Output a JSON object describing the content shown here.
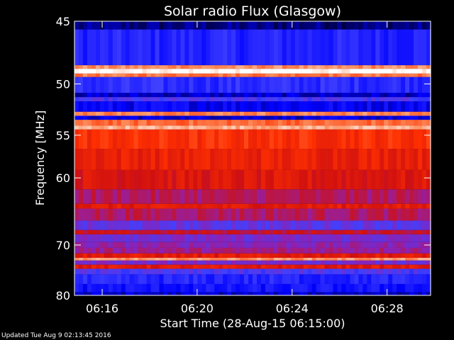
{
  "chart_data": {
    "type": "heatmap",
    "title": "Solar radio Flux (Glasgow)",
    "xlabel": "Start Time (28-Aug-15 06:15:00)",
    "ylabel": "Frequency [MHz]",
    "x_unit": "time (hh:mm)",
    "xlim": [
      "06:14:50",
      "06:29:50"
    ],
    "ylim": [
      45,
      80
    ],
    "x_ticks": [
      "06:16",
      "06:20",
      "06:24",
      "06:28"
    ],
    "y_ticks": [
      45,
      50,
      55,
      60,
      70,
      80
    ],
    "y_scale": "reciprocal",
    "colormap": [
      "#000040",
      "#0000ff",
      "#4040ff",
      "#9020b0",
      "#d01010",
      "#ff3000",
      "#ff9060",
      "#ffffff"
    ],
    "frequency_bands": [
      {
        "from": 45.0,
        "to": 45.6,
        "intensity": 0.05
      },
      {
        "from": 45.6,
        "to": 48.4,
        "intensity": 0.22
      },
      {
        "from": 48.4,
        "to": 48.7,
        "intensity": 0.85
      },
      {
        "from": 48.7,
        "to": 49.1,
        "intensity": 1.0
      },
      {
        "from": 49.1,
        "to": 49.4,
        "intensity": 0.82
      },
      {
        "from": 49.4,
        "to": 50.8,
        "intensity": 0.24
      },
      {
        "from": 50.8,
        "to": 51.2,
        "intensity": 0.1
      },
      {
        "from": 51.2,
        "to": 51.6,
        "intensity": 0.3
      },
      {
        "from": 51.6,
        "to": 52.6,
        "intensity": 0.15
      },
      {
        "from": 52.6,
        "to": 53.0,
        "intensity": 0.84
      },
      {
        "from": 53.0,
        "to": 53.4,
        "intensity": 0.12
      },
      {
        "from": 53.4,
        "to": 54.0,
        "intensity": 0.8
      },
      {
        "from": 54.0,
        "to": 54.4,
        "intensity": 0.9
      },
      {
        "from": 54.4,
        "to": 56.5,
        "intensity": 0.7
      },
      {
        "from": 56.5,
        "to": 59.0,
        "intensity": 0.65
      },
      {
        "from": 59.0,
        "to": 61.5,
        "intensity": 0.6
      },
      {
        "from": 61.5,
        "to": 63.5,
        "intensity": 0.5
      },
      {
        "from": 63.5,
        "to": 64.2,
        "intensity": 0.62
      },
      {
        "from": 64.2,
        "to": 66.0,
        "intensity": 0.5
      },
      {
        "from": 66.0,
        "to": 67.5,
        "intensity": 0.34
      },
      {
        "from": 67.5,
        "to": 68.2,
        "intensity": 0.55
      },
      {
        "from": 68.2,
        "to": 69.5,
        "intensity": 0.38
      },
      {
        "from": 69.5,
        "to": 70.5,
        "intensity": 0.42
      },
      {
        "from": 70.5,
        "to": 71.5,
        "intensity": 0.46
      },
      {
        "from": 71.5,
        "to": 72.3,
        "intensity": 0.62
      },
      {
        "from": 72.3,
        "to": 72.8,
        "intensity": 0.86
      },
      {
        "from": 72.8,
        "to": 73.6,
        "intensity": 0.38
      },
      {
        "from": 73.6,
        "to": 74.4,
        "intensity": 0.62
      },
      {
        "from": 74.4,
        "to": 75.5,
        "intensity": 0.3
      },
      {
        "from": 75.5,
        "to": 77.5,
        "intensity": 0.22
      },
      {
        "from": 77.5,
        "to": 79.3,
        "intensity": 0.18
      },
      {
        "from": 79.3,
        "to": 80.0,
        "intensity": 0.1
      }
    ]
  },
  "footer": {
    "updated": "Updated Tue Aug  9 02:13:45 2016"
  }
}
